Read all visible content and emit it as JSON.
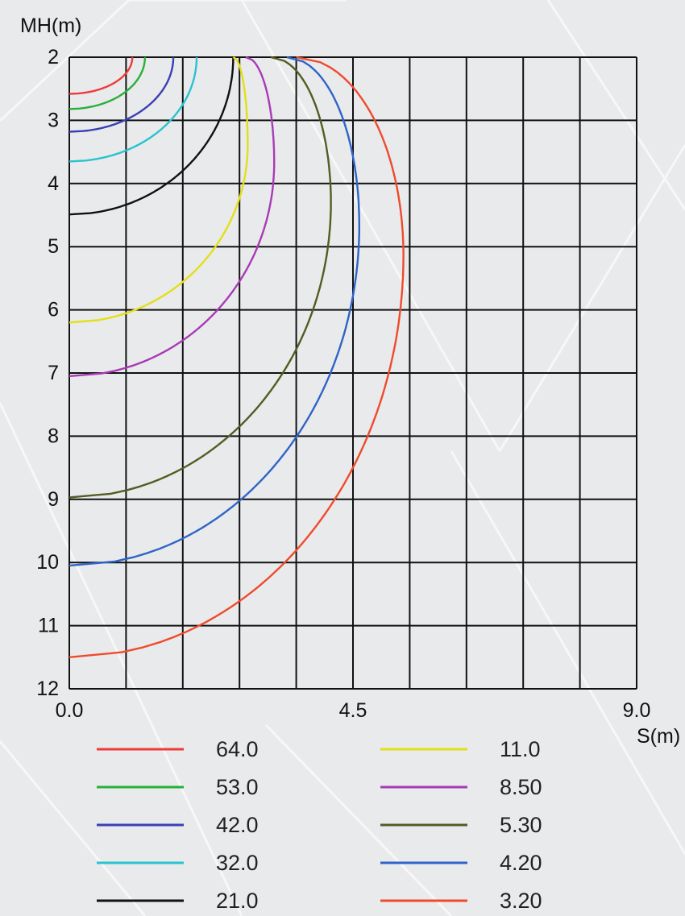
{
  "chart_data": {
    "type": "line",
    "title": "",
    "xlabel": "S(m)",
    "ylabel": "MH(m)",
    "xlim": [
      0,
      9
    ],
    "ylim": [
      12,
      2
    ],
    "y_axis_inverted": true,
    "grid": true,
    "x_grid_step": 0.9,
    "y_grid_step": 1,
    "x_tick_labels": [
      "0.0",
      "4.5",
      "9.0"
    ],
    "x_tick_values": [
      0,
      4.5,
      9
    ],
    "y_tick_labels": [
      "2",
      "3",
      "4",
      "5",
      "6",
      "7",
      "8",
      "9",
      "10",
      "11",
      "12"
    ],
    "y_tick_values": [
      2,
      3,
      4,
      5,
      6,
      7,
      8,
      9,
      10,
      11,
      12
    ],
    "legend_position": "bottom",
    "series": [
      {
        "name": "64.0",
        "color": "#f03a3a",
        "shape": "contour",
        "start_x": 1.0,
        "max_x": 1.0,
        "end_y": 2.58
      },
      {
        "name": "53.0",
        "color": "#27b03a",
        "shape": "contour",
        "start_x": 1.2,
        "max_x": 1.2,
        "end_y": 2.82
      },
      {
        "name": "42.0",
        "color": "#3a3fb6",
        "shape": "contour",
        "start_x": 1.65,
        "max_x": 1.65,
        "end_y": 3.18
      },
      {
        "name": "32.0",
        "color": "#29c3cf",
        "shape": "contour",
        "start_x": 2.02,
        "max_x": 2.02,
        "end_y": 3.65
      },
      {
        "name": "21.0",
        "color": "#111111",
        "shape": "contour",
        "start_x": 2.6,
        "max_x": 2.6,
        "end_y": 4.49
      },
      {
        "name": "11.0",
        "color": "#e3df19",
        "shape": "contour",
        "start_x": 2.6,
        "max_x": 2.83,
        "end_y": 6.2
      },
      {
        "name": "8.50",
        "color": "#a93ab7",
        "shape": "contour",
        "start_x": 2.8,
        "max_x": 3.25,
        "end_y": 7.05
      },
      {
        "name": "5.30",
        "color": "#555b22",
        "shape": "contour",
        "start_x": 3.2,
        "max_x": 4.15,
        "end_y": 8.97
      },
      {
        "name": "4.20",
        "color": "#2f64c8",
        "shape": "contour",
        "start_x": 3.45,
        "max_x": 4.6,
        "end_y": 10.05
      },
      {
        "name": "3.20",
        "color": "#ef4b2d",
        "shape": "contour",
        "start_x": 3.6,
        "max_x": 5.3,
        "end_y": 11.5
      }
    ]
  }
}
